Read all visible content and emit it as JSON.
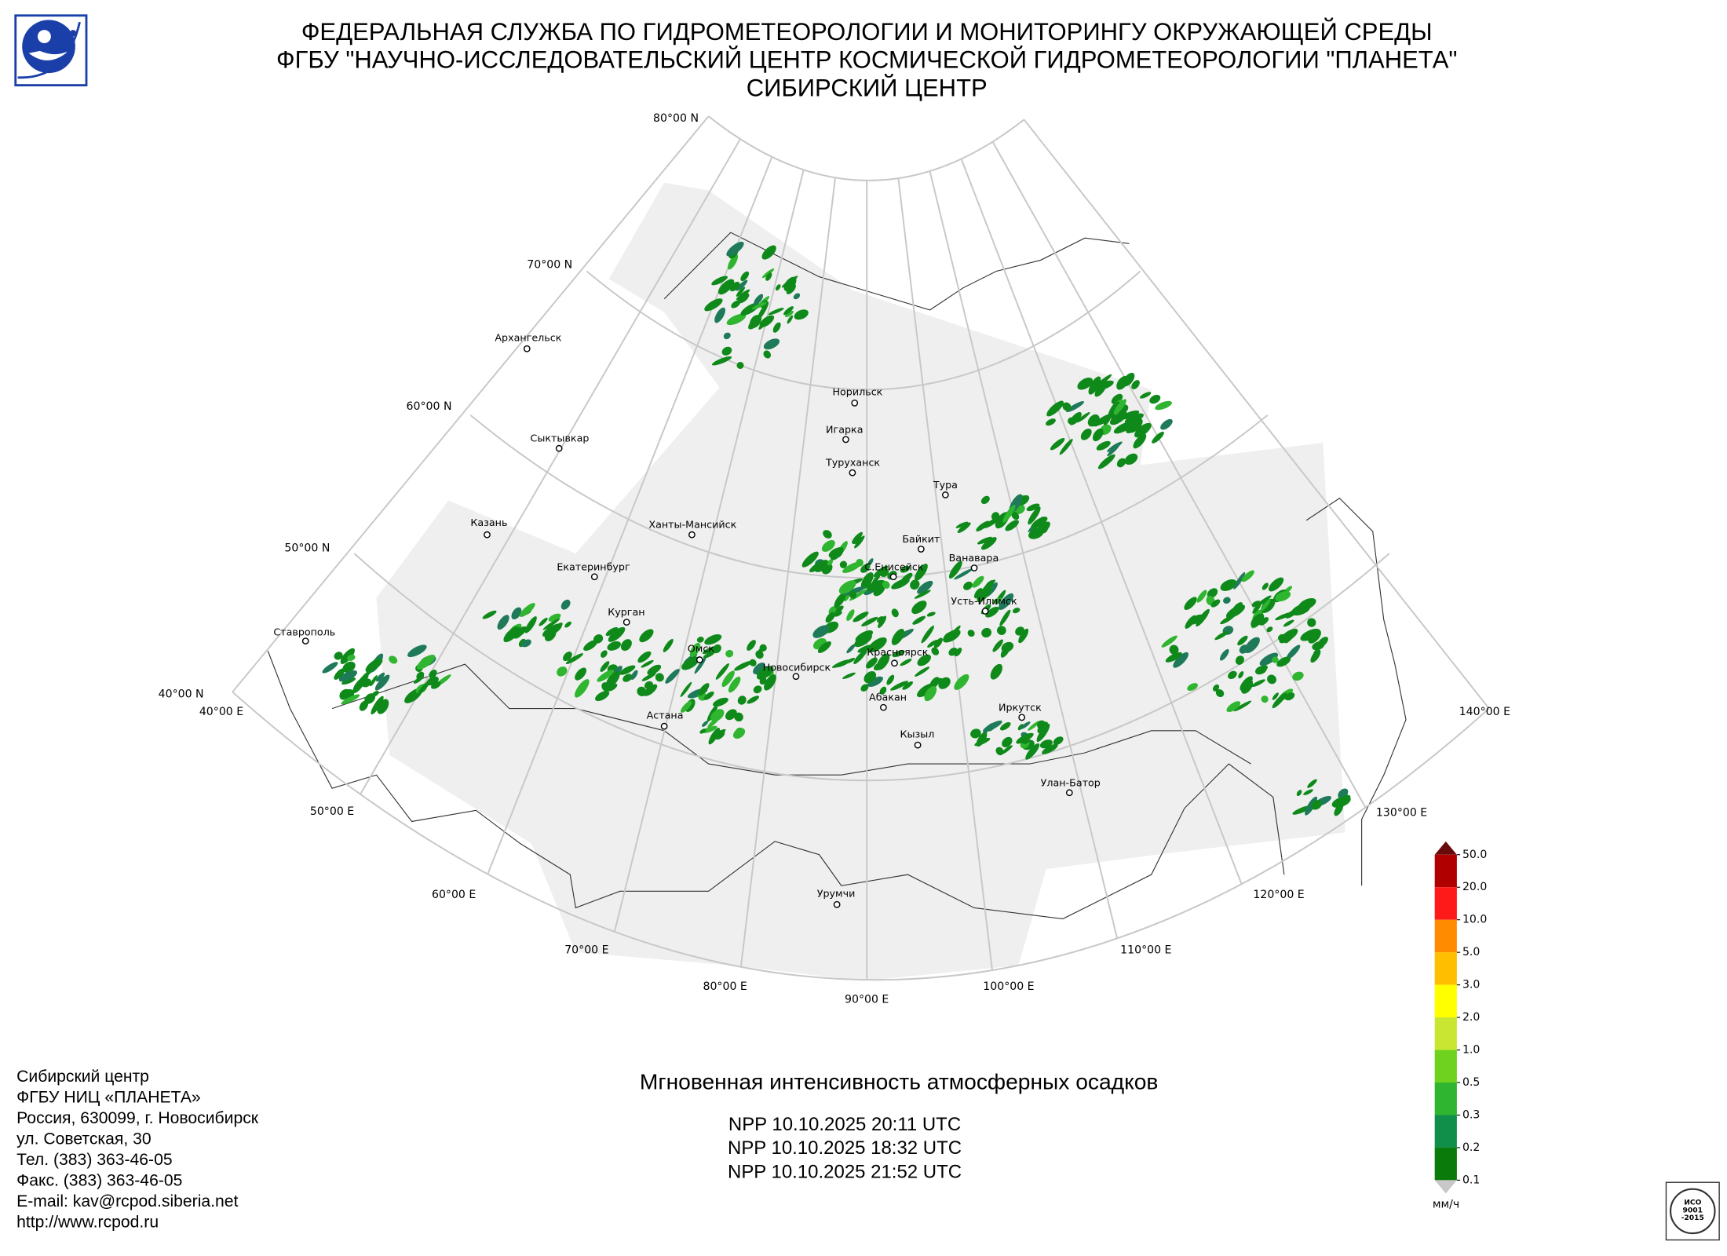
{
  "header": {
    "lines": [
      "ФЕДЕРАЛЬНАЯ СЛУЖБА ПО ГИДРОМЕТЕОРОЛОГИИ И МОНИТОРИНГУ ОКРУЖАЮЩЕЙ СРЕДЫ",
      "ФГБУ \"НАУЧНО-ИССЛЕДОВАТЕЛЬСКИЙ ЦЕНТР КОСМИЧЕСКОЙ ГИДРОМЕТЕОРОЛОГИИ \"ПЛАНЕТА\"",
      "СИБИРСКИЙ ЦЕНТР"
    ]
  },
  "map": {
    "lat_labels": [
      "80°00 N",
      "70°00 N",
      "60°00 N",
      "50°00 N",
      "40°00 N"
    ],
    "lon_labels": [
      "40°00 E",
      "50°00 E",
      "60°00 E",
      "70°00 E",
      "80°00 E",
      "90°00 E",
      "100°00 E",
      "110°00 E",
      "120°00 E",
      "130°00 E",
      "140°00 E"
    ],
    "cities": [
      "Архангельск",
      "Сыктывкар",
      "Казань",
      "Екатеринбург",
      "Курган",
      "Ставрополь",
      "Ханты-Мансийск",
      "Омск",
      "Новосибирск",
      "Астана",
      "Норильск",
      "Игарка",
      "Туруханск",
      "Тура",
      "Байкит",
      "Ванавара",
      "С.Енисейск",
      "Усть-Илимск",
      "Красноярск",
      "Абакан",
      "Кызыл",
      "Иркутск",
      "Улан-Батор",
      "Урумчи"
    ]
  },
  "product": {
    "title": "Мгновенная интенсивность атмосферных осадков",
    "passes": [
      "NPP 10.10.2025  20:11 UTC",
      "NPP 10.10.2025  18:32 UTC",
      "NPP 10.10.2025  21:52 UTC"
    ]
  },
  "legend": {
    "labels": [
      "50.0",
      "20.0",
      "10.0",
      "5.0",
      "3.0",
      "2.0",
      "1.0",
      "0.5",
      "0.3",
      "0.2",
      "0.1"
    ],
    "colors": [
      "#b00000",
      "#ff1a1a",
      "#ff8c00",
      "#ffbf00",
      "#ffff00",
      "#c8e632",
      "#6fd21e",
      "#2fb52f",
      "#0f8f4a",
      "#0a7a0a"
    ],
    "over_color": "#6b0a0a",
    "under_color": "#c8c8c8",
    "units": "мм/ч"
  },
  "footer": {
    "lines": [
      "Сибирский центр",
      "ФГБУ НИЦ «ПЛАНЕТА»",
      "Россия, 630099, г. Новосибирск",
      "ул. Советская, 30",
      "Тел. (383) 363-46-05",
      "Факс. (383) 363-46-05",
      "E-mail: kav@rcpod.siberia.net",
      "http://www.rcpod.ru"
    ]
  },
  "iso": {
    "lines": [
      "ИСО",
      "9001",
      "-2015"
    ]
  }
}
